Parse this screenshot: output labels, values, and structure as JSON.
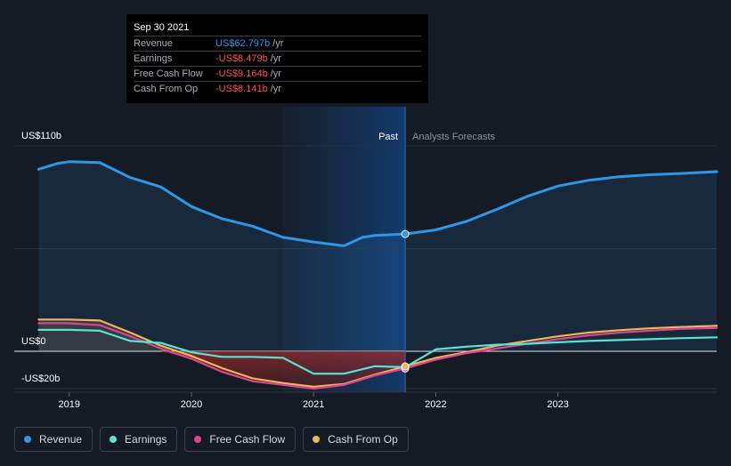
{
  "tooltip": {
    "date": "Sep 30 2021",
    "rows": [
      {
        "label": "Revenue",
        "value": "US$62.797b",
        "unit": "/yr",
        "color": "#2f96e8"
      },
      {
        "label": "Earnings",
        "value": "-US$8.479b",
        "unit": "/yr",
        "color": "#ff4f4f"
      },
      {
        "label": "Free Cash Flow",
        "value": "-US$9.164b",
        "unit": "/yr",
        "color": "#ff4f4f"
      },
      {
        "label": "Cash From Op",
        "value": "-US$8.141b",
        "unit": "/yr",
        "color": "#ff4f4f"
      }
    ]
  },
  "chart_data": {
    "type": "line",
    "y_axis_labels": [
      {
        "label": "US$110b",
        "value": 110
      },
      {
        "label": "US$0",
        "value": 0
      },
      {
        "label": "-US$20b",
        "value": -20
      }
    ],
    "x_axis_labels": [
      {
        "label": "2019",
        "value": 2019.0
      },
      {
        "label": "2020",
        "value": 2020.0
      },
      {
        "label": "2021",
        "value": 2021.0
      },
      {
        "label": "2022",
        "value": 2022.0
      },
      {
        "label": "2023",
        "value": 2023.0
      }
    ],
    "ylim": [
      -20,
      115
    ],
    "xlim": [
      2018.55,
      2024.3
    ],
    "past_label": "Past",
    "forecast_label": "Analysts Forecasts",
    "divider_x": 2021.75,
    "highlight_start_x": 2020.75,
    "series": [
      {
        "name": "Revenue",
        "color": "#2f96e8",
        "fill": true,
        "points": [
          [
            2018.75,
            97.5
          ],
          [
            2018.9,
            100.5
          ],
          [
            2019.0,
            101.5
          ],
          [
            2019.25,
            101
          ],
          [
            2019.5,
            93
          ],
          [
            2019.75,
            88
          ],
          [
            2020.0,
            77.5
          ],
          [
            2020.25,
            71
          ],
          [
            2020.5,
            67
          ],
          [
            2020.75,
            61
          ],
          [
            2021.0,
            58.5
          ],
          [
            2021.25,
            56.5
          ],
          [
            2021.4,
            61
          ],
          [
            2021.5,
            62
          ],
          [
            2021.75,
            62.8
          ],
          [
            2022.0,
            65
          ],
          [
            2022.25,
            69.5
          ],
          [
            2022.5,
            76
          ],
          [
            2022.75,
            83
          ],
          [
            2023.0,
            88.5
          ],
          [
            2023.25,
            91.5
          ],
          [
            2023.5,
            93.5
          ],
          [
            2023.75,
            94.5
          ],
          [
            2024.0,
            95.2
          ],
          [
            2024.3,
            96.2
          ]
        ]
      },
      {
        "name": "Earnings",
        "color": "#58e3d2",
        "fill": false,
        "points": [
          [
            2018.75,
            11.5
          ],
          [
            2019.0,
            11.5
          ],
          [
            2019.25,
            11
          ],
          [
            2019.5,
            5.5
          ],
          [
            2019.75,
            4.5
          ],
          [
            2020.0,
            -0.5
          ],
          [
            2020.25,
            -3
          ],
          [
            2020.5,
            -3
          ],
          [
            2020.75,
            -3.5
          ],
          [
            2021.0,
            -12
          ],
          [
            2021.25,
            -12
          ],
          [
            2021.5,
            -8
          ],
          [
            2021.75,
            -8.5
          ],
          [
            2022.0,
            1
          ],
          [
            2022.25,
            2.5
          ],
          [
            2022.5,
            3.5
          ],
          [
            2022.75,
            4
          ],
          [
            2023.0,
            4.8
          ],
          [
            2023.25,
            5.5
          ],
          [
            2023.5,
            6
          ],
          [
            2023.75,
            6.5
          ],
          [
            2024.0,
            7
          ],
          [
            2024.3,
            7.5
          ]
        ]
      },
      {
        "name": "Free Cash Flow",
        "color": "#d9468e",
        "fill": false,
        "points": [
          [
            2018.75,
            15
          ],
          [
            2019.0,
            15
          ],
          [
            2019.25,
            14
          ],
          [
            2019.5,
            8
          ],
          [
            2019.75,
            1.5
          ],
          [
            2020.0,
            -4
          ],
          [
            2020.25,
            -11
          ],
          [
            2020.5,
            -16
          ],
          [
            2020.75,
            -18
          ],
          [
            2021.0,
            -20
          ],
          [
            2021.25,
            -18
          ],
          [
            2021.5,
            -13
          ],
          [
            2021.75,
            -9.2
          ],
          [
            2022.0,
            -4.5
          ],
          [
            2022.25,
            -1
          ],
          [
            2022.5,
            1.5
          ],
          [
            2022.75,
            4
          ],
          [
            2023.0,
            6.5
          ],
          [
            2023.25,
            8.5
          ],
          [
            2023.5,
            10
          ],
          [
            2023.75,
            11
          ],
          [
            2024.0,
            12
          ],
          [
            2024.3,
            12.5
          ]
        ]
      },
      {
        "name": "Cash From Op",
        "color": "#f0b45a",
        "fill": false,
        "points": [
          [
            2018.75,
            17
          ],
          [
            2019.0,
            17
          ],
          [
            2019.25,
            16.5
          ],
          [
            2019.5,
            10
          ],
          [
            2019.75,
            3
          ],
          [
            2020.0,
            -2.5
          ],
          [
            2020.25,
            -9
          ],
          [
            2020.5,
            -14.5
          ],
          [
            2020.75,
            -17
          ],
          [
            2021.0,
            -19
          ],
          [
            2021.25,
            -17.5
          ],
          [
            2021.5,
            -12.5
          ],
          [
            2021.75,
            -8.1
          ],
          [
            2022.0,
            -3.5
          ],
          [
            2022.25,
            -0.5
          ],
          [
            2022.5,
            3
          ],
          [
            2022.75,
            5.5
          ],
          [
            2023.0,
            8
          ],
          [
            2023.25,
            10
          ],
          [
            2023.5,
            11.3
          ],
          [
            2023.75,
            12.3
          ],
          [
            2024.0,
            13
          ],
          [
            2024.3,
            13.6
          ]
        ]
      }
    ]
  },
  "legend": [
    {
      "label": "Revenue",
      "color": "#2f96e8"
    },
    {
      "label": "Earnings",
      "color": "#58e3d2"
    },
    {
      "label": "Free Cash Flow",
      "color": "#d9468e"
    },
    {
      "label": "Cash From Op",
      "color": "#f0b45a"
    }
  ]
}
